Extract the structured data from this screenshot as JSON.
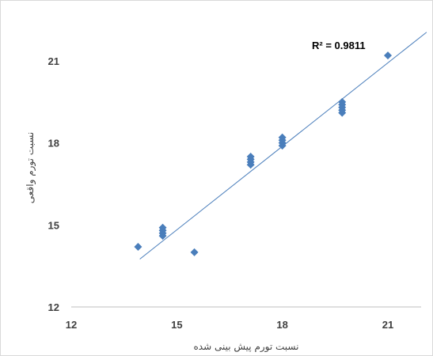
{
  "chart_data": {
    "type": "scatter",
    "title": "",
    "xlabel": "نسبت تورم پیش بینی شده",
    "ylabel": "نسبت تورم واقعی",
    "xlim": [
      12,
      22.2
    ],
    "ylim": [
      12,
      22
    ],
    "x_ticks": [
      "12",
      "15",
      "18",
      "21"
    ],
    "y_ticks": [
      "12",
      "15",
      "18",
      "21"
    ],
    "grid": false,
    "legend": "none",
    "marker_color": "#4a7ebb",
    "trendline_color": "#4a7ebb",
    "annotation": "R² = 0.9811",
    "trendline": {
      "x": [
        13.95,
        22.1
      ],
      "y": [
        13.75,
        22.05
      ]
    },
    "points": [
      {
        "x": 13.9,
        "y": 14.2
      },
      {
        "x": 14.6,
        "y": 14.6
      },
      {
        "x": 14.6,
        "y": 14.7
      },
      {
        "x": 14.6,
        "y": 14.8
      },
      {
        "x": 14.6,
        "y": 14.9
      },
      {
        "x": 15.5,
        "y": 14.0
      },
      {
        "x": 17.1,
        "y": 17.2
      },
      {
        "x": 17.1,
        "y": 17.3
      },
      {
        "x": 17.1,
        "y": 17.4
      },
      {
        "x": 17.1,
        "y": 17.5
      },
      {
        "x": 18.0,
        "y": 17.9
      },
      {
        "x": 18.0,
        "y": 18.0
      },
      {
        "x": 18.0,
        "y": 18.1
      },
      {
        "x": 18.0,
        "y": 18.2
      },
      {
        "x": 19.7,
        "y": 19.1
      },
      {
        "x": 19.7,
        "y": 19.2
      },
      {
        "x": 19.7,
        "y": 19.3
      },
      {
        "x": 19.7,
        "y": 19.4
      },
      {
        "x": 19.7,
        "y": 19.5
      },
      {
        "x": 21.0,
        "y": 21.2
      }
    ]
  }
}
